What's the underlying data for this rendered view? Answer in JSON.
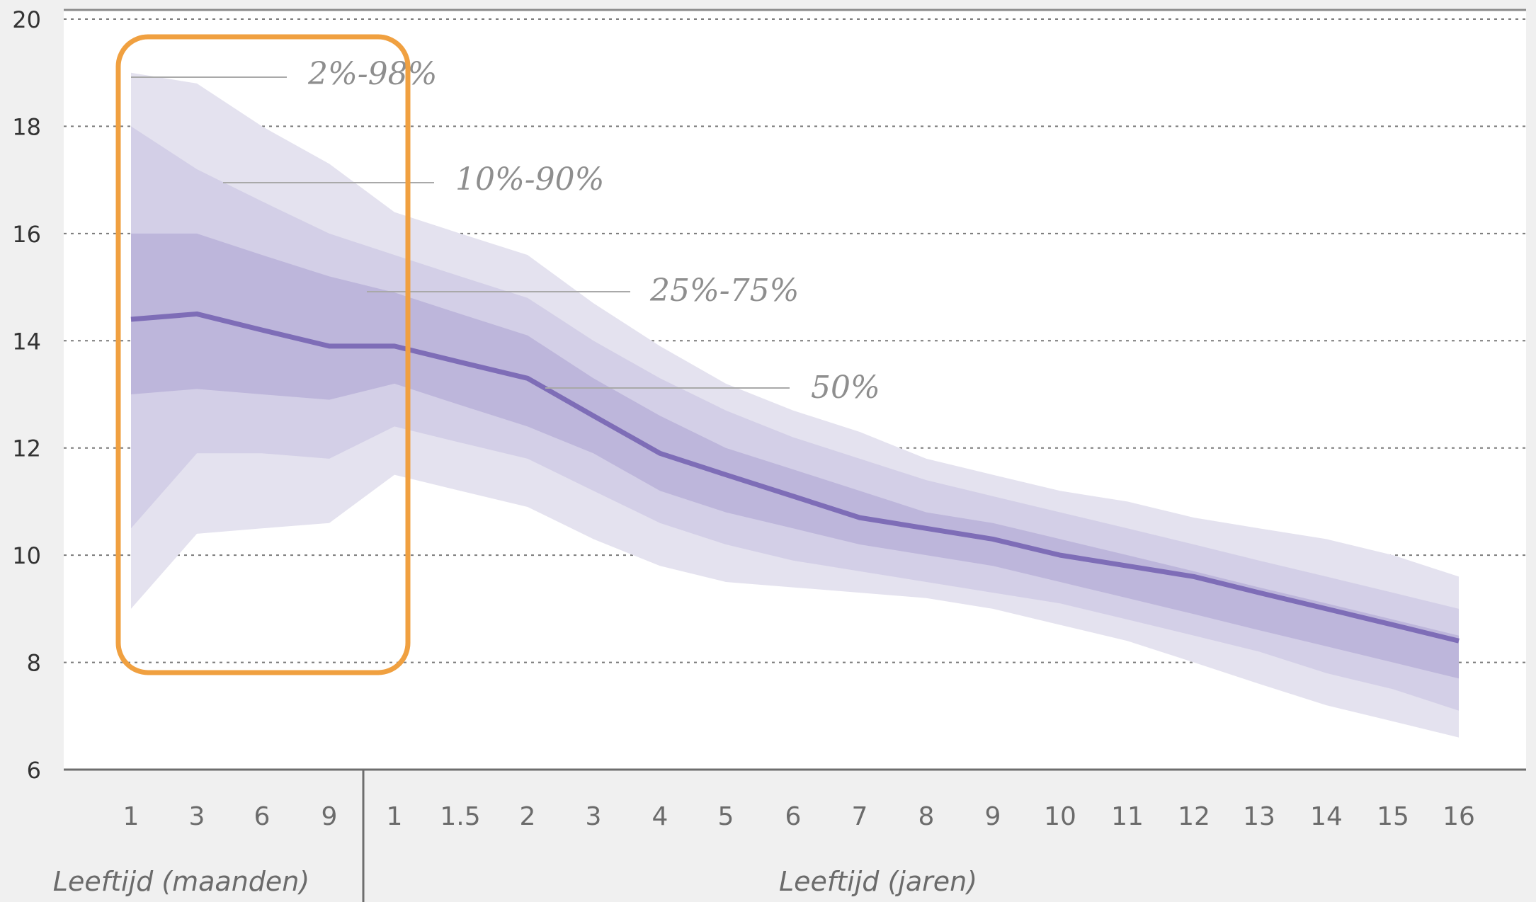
{
  "chart_data": {
    "type": "area",
    "title": "",
    "ylim": [
      6,
      20
    ],
    "y_ticks": [
      6,
      8,
      10,
      12,
      14,
      16,
      18,
      20
    ],
    "grid": true,
    "x_groups": [
      {
        "label": "Leeftijd (maanden)",
        "ticks": [
          "1",
          "3",
          "6",
          "9"
        ]
      },
      {
        "label": "Leeftijd (jaren)",
        "ticks": [
          "1",
          "1.5",
          "2",
          "3",
          "4",
          "5",
          "6",
          "7",
          "8",
          "9",
          "10",
          "11",
          "12",
          "13",
          "14",
          "15",
          "16"
        ]
      }
    ],
    "x": [
      "1",
      "3",
      "6",
      "9",
      "1",
      "1.5",
      "2",
      "3",
      "4",
      "5",
      "6",
      "7",
      "8",
      "9",
      "10",
      "11",
      "12",
      "13",
      "14",
      "15",
      "16"
    ],
    "bands": [
      {
        "name": "2%-98%",
        "color": "#e4e2ef",
        "upper": [
          19.0,
          18.8,
          18.0,
          17.3,
          16.4,
          16.0,
          15.6,
          14.7,
          13.9,
          13.2,
          12.7,
          12.3,
          11.8,
          11.5,
          11.2,
          11.0,
          10.7,
          10.5,
          10.3,
          10.0,
          9.6
        ],
        "lower": [
          9.0,
          10.4,
          10.5,
          10.6,
          11.5,
          11.2,
          10.9,
          10.3,
          9.8,
          9.5,
          9.4,
          9.3,
          9.2,
          9.0,
          8.7,
          8.4,
          8.0,
          7.6,
          7.2,
          6.9,
          6.6
        ]
      },
      {
        "name": "10%-90%",
        "color": "#d3cfe7",
        "upper": [
          18.0,
          17.2,
          16.6,
          16.0,
          15.6,
          15.2,
          14.8,
          14.0,
          13.3,
          12.7,
          12.2,
          11.8,
          11.4,
          11.1,
          10.8,
          10.5,
          10.2,
          9.9,
          9.6,
          9.3,
          9.0
        ],
        "lower": [
          10.5,
          11.9,
          11.9,
          11.8,
          12.4,
          12.1,
          11.8,
          11.2,
          10.6,
          10.2,
          9.9,
          9.7,
          9.5,
          9.3,
          9.1,
          8.8,
          8.5,
          8.2,
          7.8,
          7.5,
          7.1
        ]
      },
      {
        "name": "25%-75%",
        "color": "#bdb6db",
        "upper": [
          16.0,
          16.0,
          15.6,
          15.2,
          14.9,
          14.5,
          14.1,
          13.3,
          12.6,
          12.0,
          11.6,
          11.2,
          10.8,
          10.6,
          10.3,
          10.0,
          9.7,
          9.4,
          9.1,
          8.8,
          8.5
        ],
        "lower": [
          13.0,
          13.1,
          13.0,
          12.9,
          13.2,
          12.8,
          12.4,
          11.9,
          11.2,
          10.8,
          10.5,
          10.2,
          10.0,
          9.8,
          9.5,
          9.2,
          8.9,
          8.6,
          8.3,
          8.0,
          7.7
        ]
      }
    ],
    "series": [
      {
        "name": "50%",
        "color": "#7e6db7",
        "values": [
          14.4,
          14.5,
          14.2,
          13.9,
          13.9,
          13.6,
          13.3,
          12.6,
          11.9,
          11.5,
          11.1,
          10.7,
          10.5,
          10.3,
          10.0,
          9.8,
          9.6,
          9.3,
          9.0,
          8.7,
          8.4
        ]
      }
    ],
    "band_labels": [
      "2%-98%",
      "10%-90%",
      "25%-75%",
      "50%"
    ],
    "highlight_box_color": "#f0a040"
  }
}
